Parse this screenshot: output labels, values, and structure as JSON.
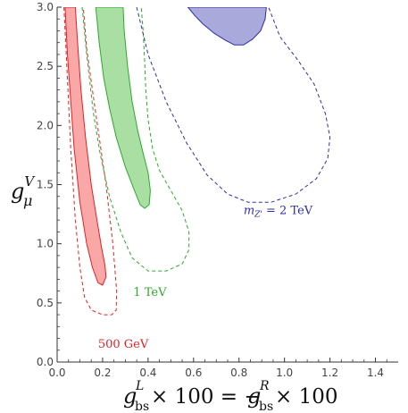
{
  "chart_data": {
    "type": "area",
    "xlim": [
      0,
      1.5
    ],
    "ylim": [
      0,
      3.0
    ],
    "x_ticks": [
      "0.0",
      "0.2",
      "0.4",
      "0.6",
      "0.8",
      "1.0",
      "1.2",
      "1.4"
    ],
    "y_ticks": [
      "0.0",
      "0.5",
      "1.0",
      "1.5",
      "2.0",
      "2.5",
      "3.0"
    ],
    "ylabel": {
      "main": "g",
      "sub": "μ",
      "sup": "V"
    },
    "xlabel": {
      "left_main": "g",
      "left_sub": "bs",
      "left_sup": "L",
      "middle": " × 100 = −",
      "right_main": "g",
      "right_sub": "bs",
      "right_sup": "R",
      "end": " × 100"
    },
    "grid": false,
    "series": [
      {
        "annotation": "500 GeV",
        "annotation_pos": [
          0.18,
          0.12
        ],
        "color": "#e22222",
        "fill": "#f9a7a7",
        "filled_region": [
          [
            0.035,
            3.0
          ],
          [
            0.08,
            3.0
          ],
          [
            0.09,
            2.7
          ],
          [
            0.105,
            2.3
          ],
          [
            0.125,
            1.9
          ],
          [
            0.15,
            1.5
          ],
          [
            0.175,
            1.2
          ],
          [
            0.195,
            0.97
          ],
          [
            0.21,
            0.82
          ],
          [
            0.215,
            0.72
          ],
          [
            0.2,
            0.65
          ],
          [
            0.18,
            0.67
          ],
          [
            0.155,
            0.8
          ],
          [
            0.13,
            1.0
          ],
          [
            0.1,
            1.35
          ],
          [
            0.075,
            1.8
          ],
          [
            0.06,
            2.2
          ],
          [
            0.045,
            2.6
          ],
          [
            0.035,
            3.0
          ]
        ],
        "dashed_contour": [
          [
            0.03,
            3.0
          ],
          [
            0.045,
            2.4
          ],
          [
            0.06,
            1.8
          ],
          [
            0.08,
            1.2
          ],
          [
            0.1,
            0.8
          ],
          [
            0.12,
            0.55
          ],
          [
            0.15,
            0.44
          ],
          [
            0.2,
            0.4
          ],
          [
            0.24,
            0.4
          ],
          [
            0.26,
            0.44
          ],
          [
            0.262,
            0.6
          ],
          [
            0.245,
            1.0
          ],
          [
            0.215,
            1.5
          ],
          [
            0.185,
            1.9
          ],
          [
            0.155,
            2.3
          ],
          [
            0.13,
            2.65
          ],
          [
            0.115,
            3.0
          ]
        ]
      },
      {
        "annotation": "1 TeV",
        "annotation_pos": [
          0.335,
          0.56
        ],
        "color": "#2aab2a",
        "fill": "#a9dfa3",
        "filled_region": [
          [
            0.17,
            3.0
          ],
          [
            0.29,
            3.0
          ],
          [
            0.295,
            2.8
          ],
          [
            0.31,
            2.5
          ],
          [
            0.33,
            2.2
          ],
          [
            0.355,
            1.95
          ],
          [
            0.38,
            1.75
          ],
          [
            0.4,
            1.6
          ],
          [
            0.41,
            1.45
          ],
          [
            0.405,
            1.33
          ],
          [
            0.385,
            1.3
          ],
          [
            0.365,
            1.33
          ],
          [
            0.34,
            1.45
          ],
          [
            0.3,
            1.65
          ],
          [
            0.26,
            1.9
          ],
          [
            0.23,
            2.15
          ],
          [
            0.205,
            2.4
          ],
          [
            0.185,
            2.7
          ],
          [
            0.17,
            3.0
          ]
        ],
        "dashed_contour": [
          [
            0.11,
            3.0
          ],
          [
            0.13,
            2.6
          ],
          [
            0.16,
            2.1
          ],
          [
            0.19,
            1.75
          ],
          [
            0.23,
            1.4
          ],
          [
            0.28,
            1.1
          ],
          [
            0.33,
            0.88
          ],
          [
            0.4,
            0.77
          ],
          [
            0.48,
            0.77
          ],
          [
            0.55,
            0.83
          ],
          [
            0.58,
            0.95
          ],
          [
            0.58,
            1.1
          ],
          [
            0.55,
            1.28
          ],
          [
            0.5,
            1.45
          ],
          [
            0.45,
            1.62
          ],
          [
            0.42,
            1.8
          ],
          [
            0.4,
            2.05
          ],
          [
            0.39,
            2.3
          ],
          [
            0.385,
            2.55
          ],
          [
            0.378,
            2.8
          ],
          [
            0.37,
            3.0
          ]
        ]
      },
      {
        "annotation": "m",
        "annotation_sub": "Z'",
        "annotation_rest": " = 2 TeV",
        "annotation_pos": [
          0.82,
          1.25
        ],
        "color": "#2e2ea5",
        "fill": "#a9a9dc",
        "filled_region": [
          [
            0.575,
            3.0
          ],
          [
            0.92,
            3.0
          ],
          [
            0.915,
            2.9
          ],
          [
            0.895,
            2.8
          ],
          [
            0.86,
            2.73
          ],
          [
            0.82,
            2.68
          ],
          [
            0.78,
            2.68
          ],
          [
            0.74,
            2.72
          ],
          [
            0.69,
            2.78
          ],
          [
            0.64,
            2.86
          ],
          [
            0.605,
            2.93
          ],
          [
            0.575,
            3.0
          ]
        ],
        "dashed_contour": [
          [
            0.35,
            3.0
          ],
          [
            0.4,
            2.6
          ],
          [
            0.48,
            2.2
          ],
          [
            0.57,
            1.85
          ],
          [
            0.66,
            1.58
          ],
          [
            0.75,
            1.42
          ],
          [
            0.84,
            1.35
          ],
          [
            0.94,
            1.35
          ],
          [
            1.05,
            1.42
          ],
          [
            1.14,
            1.55
          ],
          [
            1.19,
            1.72
          ],
          [
            1.2,
            1.9
          ],
          [
            1.18,
            2.1
          ],
          [
            1.13,
            2.35
          ],
          [
            1.06,
            2.55
          ],
          [
            0.98,
            2.75
          ],
          [
            0.93,
            3.0
          ]
        ]
      }
    ]
  }
}
